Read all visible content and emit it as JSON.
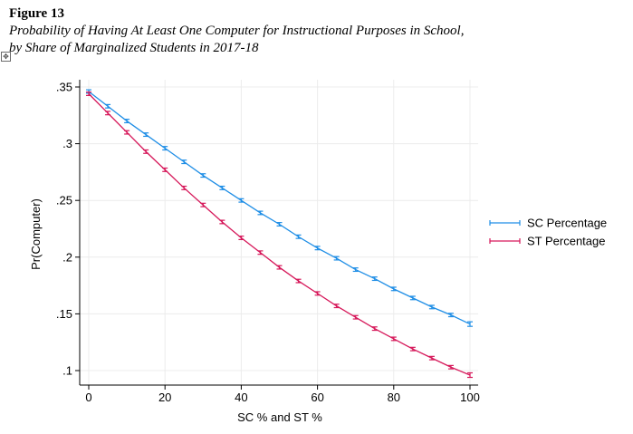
{
  "figure": {
    "label": "Figure 13",
    "caption_line1": "Probability of Having At Least One Computer for Instructional Purposes in School,",
    "caption_line2": "by Share of Marginalized Students in 2017-18"
  },
  "icons": {
    "move_handle": "move-handle-icon"
  },
  "colors": {
    "sc": "#1f8ee6",
    "st": "#d6185a",
    "grid": "#ececec",
    "axis": "#000000"
  },
  "chart_data": {
    "type": "line",
    "title": "",
    "xlabel": "SC % and ST %",
    "ylabel": "Pr(Computer)",
    "xlim": [
      0,
      100
    ],
    "ylim": [
      0.1,
      0.35
    ],
    "x_ticks": [
      0,
      20,
      40,
      60,
      80,
      100
    ],
    "x_tick_labels": [
      "0",
      "20",
      "40",
      "60",
      "80",
      "100"
    ],
    "y_ticks": [
      0.1,
      0.15,
      0.2,
      0.25,
      0.3,
      0.35
    ],
    "y_tick_labels": [
      ".1",
      ".15",
      ".2",
      ".25",
      ".3",
      ".35"
    ],
    "grid": true,
    "legend_position": "right",
    "x": [
      0,
      5,
      10,
      15,
      20,
      25,
      30,
      35,
      40,
      45,
      50,
      55,
      60,
      65,
      70,
      75,
      80,
      85,
      90,
      95,
      100
    ],
    "series": [
      {
        "name": "SC Percentage",
        "values": [
          0.346,
          0.333,
          0.32,
          0.308,
          0.296,
          0.284,
          0.272,
          0.261,
          0.25,
          0.239,
          0.229,
          0.218,
          0.208,
          0.199,
          0.189,
          0.181,
          0.172,
          0.164,
          0.156,
          0.149,
          0.141
        ],
        "ci": [
          0.0015,
          0.0015,
          0.0015,
          0.0015,
          0.0015,
          0.0015,
          0.0015,
          0.0015,
          0.0015,
          0.0015,
          0.0015,
          0.0015,
          0.0015,
          0.0015,
          0.0015,
          0.0015,
          0.0015,
          0.0015,
          0.0015,
          0.0015,
          0.002
        ]
      },
      {
        "name": "ST Percentage",
        "values": [
          0.344,
          0.327,
          0.31,
          0.293,
          0.277,
          0.261,
          0.246,
          0.231,
          0.217,
          0.204,
          0.191,
          0.179,
          0.168,
          0.157,
          0.147,
          0.137,
          0.128,
          0.119,
          0.111,
          0.103,
          0.096
        ],
        "ci": [
          0.0015,
          0.0015,
          0.0015,
          0.0015,
          0.0015,
          0.0015,
          0.0015,
          0.0015,
          0.0015,
          0.0015,
          0.0015,
          0.0015,
          0.0015,
          0.0015,
          0.0015,
          0.0015,
          0.0015,
          0.0015,
          0.0015,
          0.0015,
          0.002
        ]
      }
    ]
  }
}
